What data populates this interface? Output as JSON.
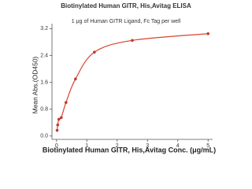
{
  "chart_data": {
    "type": "scatter",
    "title": "Biotinylated Human GITR, His,Avitag ELISA",
    "subtitle": "1 μg of Human GITR Ligand, Fc Tag per well",
    "x_label": "Biotinylated Human GITR, His,Avitag Conc. (μg/mL)",
    "y_label": "Mean Abs.(OD450)",
    "x": [
      0.0195,
      0.039,
      0.078,
      0.156,
      0.3125,
      0.625,
      1.25,
      2.5,
      5
    ],
    "values": [
      0.17,
      0.33,
      0.5,
      0.55,
      1.0,
      1.7,
      2.5,
      2.85,
      3.05
    ],
    "color": "#c0392b",
    "line_color": "#d9442e",
    "fit_line": true,
    "xlim": [
      -0.15,
      5.15
    ],
    "xticks": [
      0,
      1,
      2,
      3,
      4,
      5
    ],
    "ylim": [
      -0.1,
      3.35
    ],
    "yticks": [
      {
        "value": 0,
        "label": "0.0"
      },
      {
        "value": 0.8,
        "label": "0.8"
      },
      {
        "value": 1.6,
        "label": "1.6"
      },
      {
        "value": 2.4,
        "label": "2.4"
      },
      {
        "value": 3.2,
        "label": "3.2"
      }
    ]
  }
}
